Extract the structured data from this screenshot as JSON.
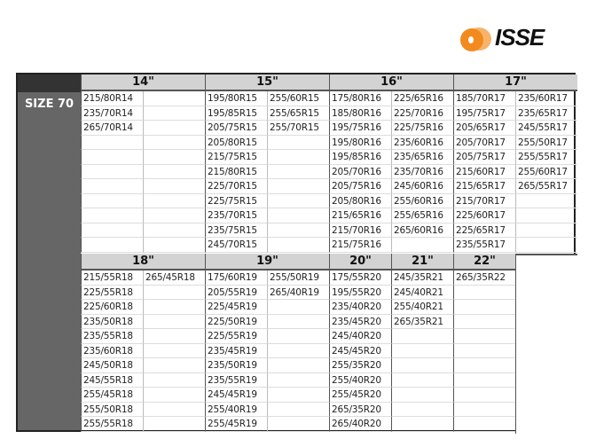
{
  "logo": {
    "text": "ISSE",
    "colors": {
      "swirl": "#f28a1e",
      "text": "#111111"
    }
  },
  "size_label": "SIZE 70",
  "sections": [
    {
      "groups": [
        {
          "label": "14\"",
          "columns": [
            [
              "215/80R14",
              "235/70R14",
              "265/70R14"
            ],
            []
          ]
        },
        {
          "label": "15\"",
          "columns": [
            [
              "195/80R15",
              "195/85R15",
              "205/75R15",
              "205/80R15",
              "215/75R15",
              "215/80R15",
              "225/70R15",
              "225/75R15",
              "235/70R15",
              "235/75R15",
              "245/70R15"
            ],
            [
              "255/60R15",
              "255/65R15",
              "255/70R15"
            ]
          ]
        },
        {
          "label": "16\"",
          "columns": [
            [
              "175/80R16",
              "185/80R16",
              "195/75R16",
              "195/80R16",
              "195/85R16",
              "205/70R16",
              "205/75R16",
              "205/80R16",
              "215/65R16",
              "215/70R16",
              "215/75R16"
            ],
            [
              "225/65R16",
              "225/70R16",
              "225/75R16",
              "235/60R16",
              "235/65R16",
              "235/70R16",
              "245/60R16",
              "255/60R16",
              "255/65R16",
              "265/60R16"
            ]
          ]
        },
        {
          "label": "17\"",
          "columns": [
            [
              "185/70R17",
              "195/75R17",
              "205/65R17",
              "205/70R17",
              "205/75R17",
              "215/60R17",
              "215/65R17",
              "215/70R17",
              "225/60R17",
              "225/65R17",
              "235/55R17"
            ],
            [
              "235/60R17",
              "235/65R17",
              "245/55R17",
              "255/50R17",
              "255/55R17",
              "255/60R17",
              "265/55R17"
            ]
          ]
        }
      ]
    },
    {
      "groups": [
        {
          "label": "18\"",
          "columns": [
            [
              "215/55R18",
              "225/55R18",
              "225/60R18",
              "235/50R18",
              "235/55R18",
              "235/60R18",
              "245/50R18",
              "245/55R18",
              "255/45R18",
              "255/50R18",
              "255/55R18"
            ],
            [
              "265/45R18"
            ]
          ]
        },
        {
          "label": "19\"",
          "columns": [
            [
              "175/60R19",
              "205/55R19",
              "225/45R19",
              "225/50R19",
              "225/55R19",
              "235/45R19",
              "235/50R19",
              "235/55R19",
              "245/45R19",
              "255/40R19",
              "255/45R19"
            ],
            [
              "255/50R19",
              "265/40R19"
            ]
          ]
        },
        {
          "label": "20\"",
          "columns": [
            [
              "175/55R20",
              "195/55R20",
              "235/40R20",
              "235/45R20",
              "245/40R20",
              "245/45R20",
              "255/35R20",
              "255/40R20",
              "255/45R20",
              "265/35R20",
              "265/40R20"
            ]
          ]
        },
        {
          "label": "21\"",
          "columns": [
            [
              "245/35R21",
              "245/40R21",
              "255/40R21",
              "265/35R21"
            ]
          ]
        },
        {
          "label": "22\"",
          "columns": [
            [
              "265/35R22"
            ]
          ]
        }
      ]
    }
  ]
}
